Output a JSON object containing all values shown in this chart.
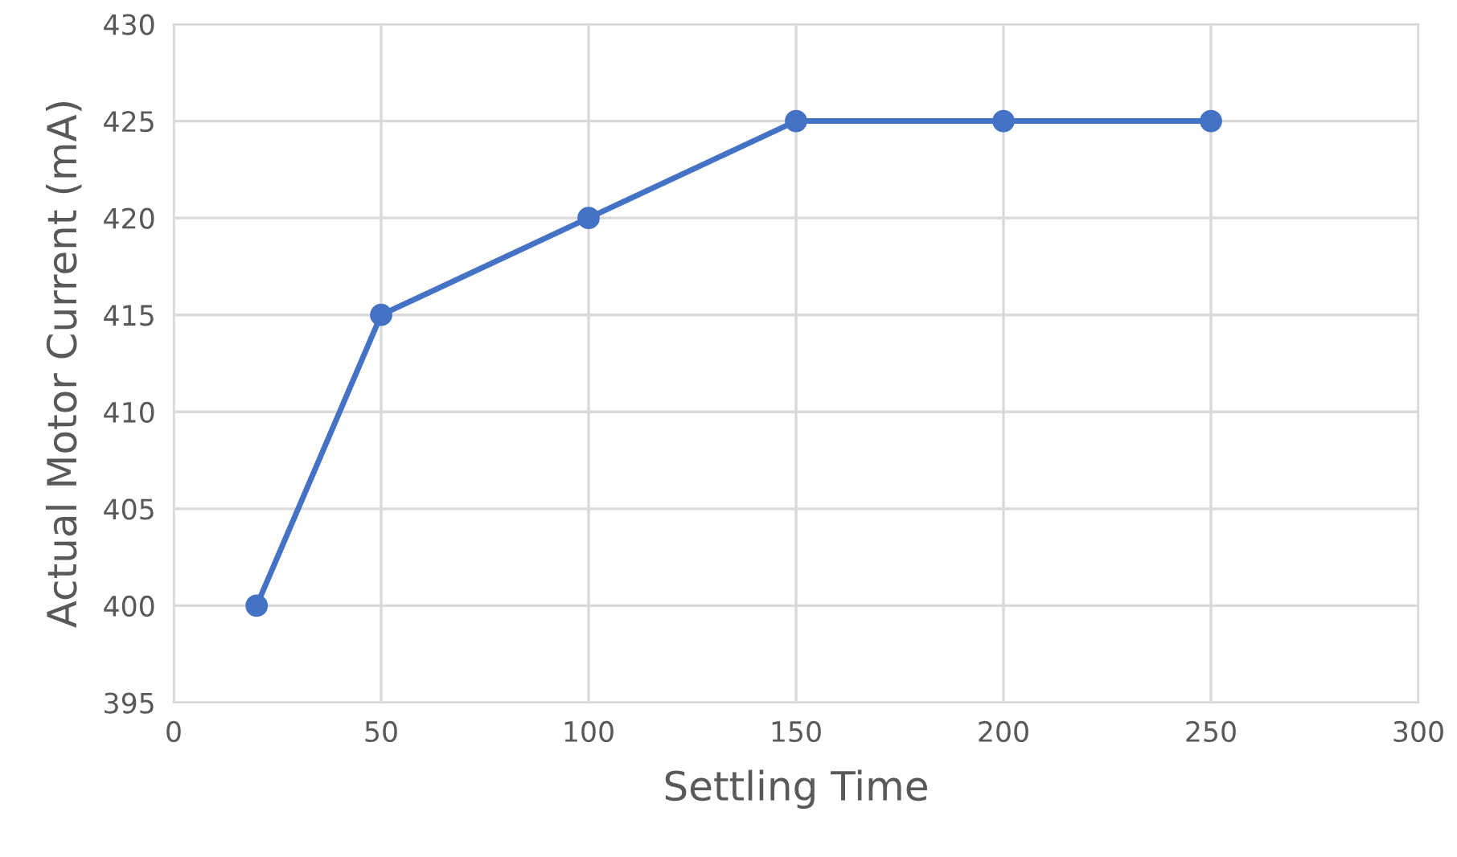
{
  "chart_data": {
    "type": "line",
    "xlabel": "Settling Time",
    "ylabel": "Actual Motor Current (mA)",
    "x": [
      20,
      50,
      100,
      150,
      200,
      250
    ],
    "series": [
      {
        "color": "#4472c4",
        "values": [
          400,
          415,
          420,
          425,
          425,
          425
        ]
      }
    ],
    "xlim": [
      0,
      300
    ],
    "xticks": [
      0,
      50,
      100,
      150,
      200,
      250,
      300
    ],
    "ylim": [
      395,
      430
    ],
    "yticks": [
      395,
      400,
      405,
      410,
      415,
      420,
      425,
      430
    ],
    "grid": true,
    "marker": "circle",
    "line_style": "solid",
    "legend": false
  }
}
